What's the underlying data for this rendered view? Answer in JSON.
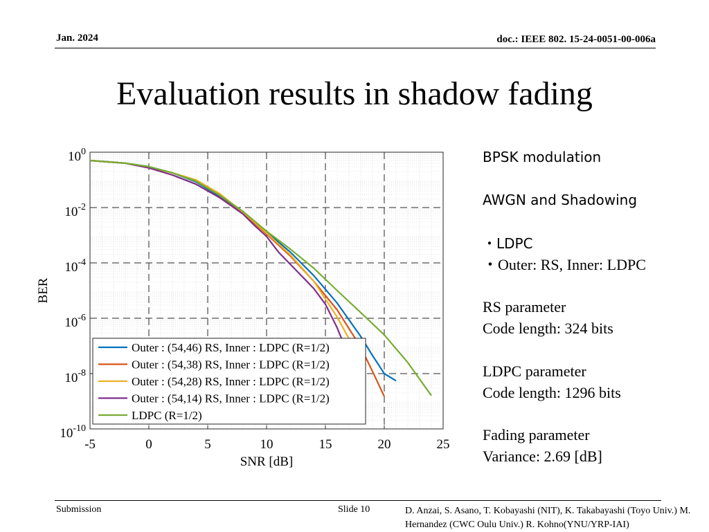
{
  "header": {
    "date": "Jan. 2024",
    "doc": "doc.: IEEE 802. 15-24-0051-00-006a"
  },
  "title": "Evaluation results in shadow fading",
  "side": {
    "modulation": "BPSK modulation",
    "channel": "AWGN and Shadowing",
    "scheme1": "・LDPC",
    "scheme2": "・Outer: RS, Inner: LDPC",
    "rs_heading": "RS parameter",
    "rs_value": "Code length: 324 bits",
    "ldpc_heading": "LDPC parameter",
    "ldpc_value": "Code length: 1296 bits",
    "fading_heading": "Fading parameter",
    "fading_value": "Variance: 2.69 [dB]"
  },
  "footer": {
    "submission": "Submission",
    "slide": "Slide 10",
    "authors": "D. Anzai, S. Asano,  T. Kobayashi (NIT), K. Takabayashi (Toyo Univ.) M. Hernandez (CWC Oulu Univ.) R. Kohno(YNU/YRP-IAI)"
  },
  "chart_data": {
    "type": "line",
    "title": "",
    "xlabel": "SNR [dB]",
    "ylabel": "BER",
    "xlim": [
      -5,
      25
    ],
    "ylim_log10": [
      -10,
      0
    ],
    "xticks": [
      "-5",
      "0",
      "5",
      "10",
      "15",
      "20",
      "25"
    ],
    "yticks": [
      {
        "base": "10",
        "exp": "0"
      },
      {
        "base": "10",
        "exp": "-2"
      },
      {
        "base": "10",
        "exp": "-4"
      },
      {
        "base": "10",
        "exp": "-6"
      },
      {
        "base": "10",
        "exp": "-8"
      },
      {
        "base": "10",
        "exp": "-10"
      }
    ],
    "grid": true,
    "legend_position": "bottom-left",
    "series": [
      {
        "name": "Outer : (54,46) RS, Inner : LDPC (R=1/2)",
        "color": "#0072BD",
        "x": [
          -5,
          -2,
          0,
          2,
          4,
          6,
          8,
          10,
          12,
          14,
          16,
          18,
          19,
          20,
          21
        ],
        "y": [
          0.5,
          0.4,
          0.3,
          0.18,
          0.085,
          0.026,
          0.0068,
          0.0013,
          0.00025,
          3.5e-05,
          3.5e-06,
          2.2e-07,
          4.5e-08,
          1e-08,
          5.5e-09
        ]
      },
      {
        "name": "Outer : (54,38) RS, Inner : LDPC (R=1/2)",
        "color": "#D95319",
        "x": [
          -5,
          -2,
          0,
          2,
          4,
          6,
          8,
          10,
          12,
          14,
          16,
          18,
          19,
          20
        ],
        "y": [
          0.5,
          0.4,
          0.27,
          0.15,
          0.07,
          0.023,
          0.0062,
          0.0011,
          0.00018,
          2.2e-05,
          2e-06,
          9e-08,
          1.2e-08,
          1.5e-09
        ]
      },
      {
        "name": "Outer : (54,28) RS, Inner : LDPC (R=1/2)",
        "color": "#EDB120",
        "x": [
          -5,
          -2,
          0,
          2,
          4,
          6,
          8,
          10,
          12,
          14,
          16,
          17,
          18
        ],
        "y": [
          0.5,
          0.4,
          0.29,
          0.18,
          0.1,
          0.032,
          0.0068,
          0.0012,
          0.0002,
          2.2e-05,
          1.1e-06,
          1.8e-07,
          1.5e-08
        ]
      },
      {
        "name": "Outer : (54,14) RS, Inner : LDPC (R=1/2)",
        "color": "#7E2F8E",
        "x": [
          -5,
          -2,
          0,
          2,
          4,
          6,
          8,
          9,
          10,
          11,
          12,
          14,
          15,
          16,
          17
        ],
        "y": [
          0.5,
          0.4,
          0.27,
          0.15,
          0.07,
          0.023,
          0.0058,
          0.0022,
          0.0009,
          0.00025,
          9e-05,
          1.2e-05,
          3.2e-06,
          4.5e-07,
          4e-08
        ]
      },
      {
        "name": "LDPC (R=1/2)",
        "color": "#77AC30",
        "x": [
          -5,
          -2,
          0,
          2,
          4,
          6,
          8,
          10,
          12,
          14,
          16,
          18,
          20,
          22,
          24
        ],
        "y": [
          0.5,
          0.4,
          0.3,
          0.18,
          0.09,
          0.028,
          0.0072,
          0.0014,
          0.00032,
          6.5e-05,
          1e-05,
          1.6e-06,
          2.5e-07,
          2.5e-08,
          1.6e-09
        ]
      }
    ]
  }
}
